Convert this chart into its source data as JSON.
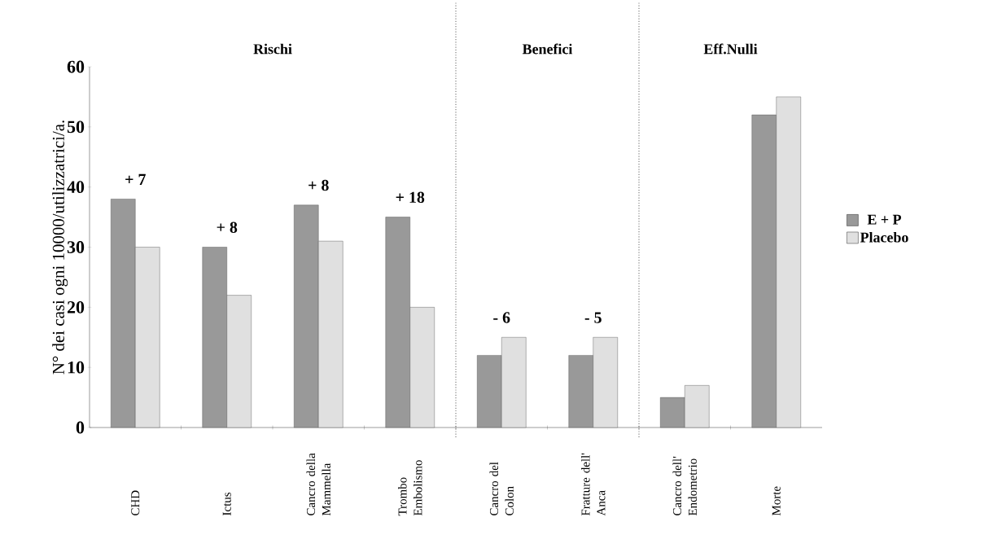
{
  "chart_data": {
    "type": "bar",
    "ylabel": "N° dei casi ogni 10000/utilizzatrici/a.",
    "categories": [
      "CHD",
      "Ictus",
      "Cancro della Mammella",
      "Trombo Embolismo",
      "Cancro del Colon",
      "Fratture dell' Anca",
      "Cancro dell' Endometrio",
      "Morte"
    ],
    "series": [
      {
        "name": "E + P",
        "color": "#999999",
        "values": [
          38,
          30,
          37,
          35,
          12,
          12,
          5,
          52
        ]
      },
      {
        "name": "Placebo",
        "color": "#e0e0e0",
        "values": [
          30,
          22,
          31,
          20,
          15,
          15,
          7,
          55
        ]
      }
    ],
    "ylim": [
      0,
      60
    ],
    "yticks": [
      0,
      10,
      20,
      30,
      40,
      50,
      60
    ],
    "annotations": [
      "Rischi",
      "Benefici",
      "Eff.Nulli",
      "+ 7",
      "+ 8",
      "+ 8",
      "+ 18",
      "- 6",
      "- 5"
    ],
    "legend": "right"
  }
}
